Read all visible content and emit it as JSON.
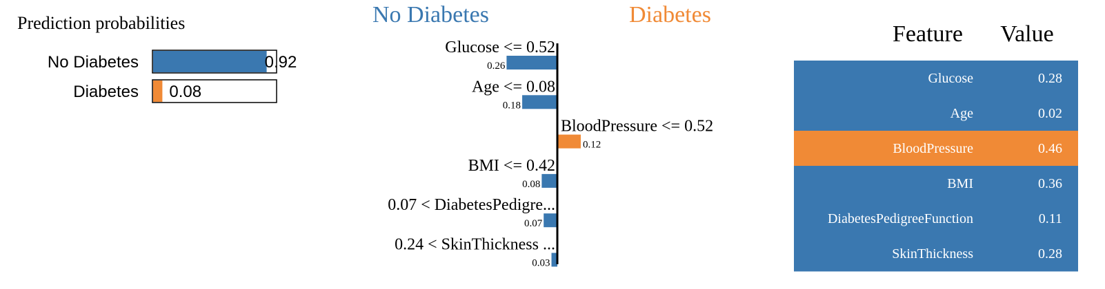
{
  "colors": {
    "negative": "#3A78B0",
    "positive": "#F08A36",
    "axis": "#000000",
    "table_text": "#ffffff"
  },
  "prediction": {
    "title": "Prediction probabilities",
    "rows": [
      {
        "label": "No Diabetes",
        "value": 0.92,
        "value_text": "0.92",
        "color_key": "negative"
      },
      {
        "label": "Diabetes",
        "value": 0.08,
        "value_text": "0.08",
        "color_key": "positive"
      }
    ]
  },
  "explanation": {
    "left_class": "No Diabetes",
    "right_class": "Diabetes"
  },
  "chart_data": {
    "type": "bar",
    "orientation": "horizontal",
    "categories": [
      "Glucose <= 0.52",
      "Age <= 0.08",
      "BloodPressure <= 0.52",
      "BMI <= 0.42",
      "0.07 < DiabetesPedigre...",
      "0.24 < SkinThickness ..."
    ],
    "values": [
      -0.26,
      -0.18,
      0.12,
      -0.08,
      -0.07,
      -0.03
    ],
    "value_labels": [
      "0.26",
      "0.18",
      "0.12",
      "0.08",
      "0.07",
      "0.03"
    ],
    "series_classes": {
      "negative": "No Diabetes",
      "positive": "Diabetes"
    }
  },
  "table": {
    "headers": [
      "Feature",
      "Value"
    ],
    "rows": [
      {
        "feature": "Glucose",
        "value": "0.28",
        "color_key": "negative"
      },
      {
        "feature": "Age",
        "value": "0.02",
        "color_key": "negative"
      },
      {
        "feature": "BloodPressure",
        "value": "0.46",
        "color_key": "positive"
      },
      {
        "feature": "BMI",
        "value": "0.36",
        "color_key": "negative"
      },
      {
        "feature": "DiabetesPedigreeFunction",
        "value": "0.11",
        "color_key": "negative"
      },
      {
        "feature": "SkinThickness",
        "value": "0.28",
        "color_key": "negative"
      }
    ]
  }
}
